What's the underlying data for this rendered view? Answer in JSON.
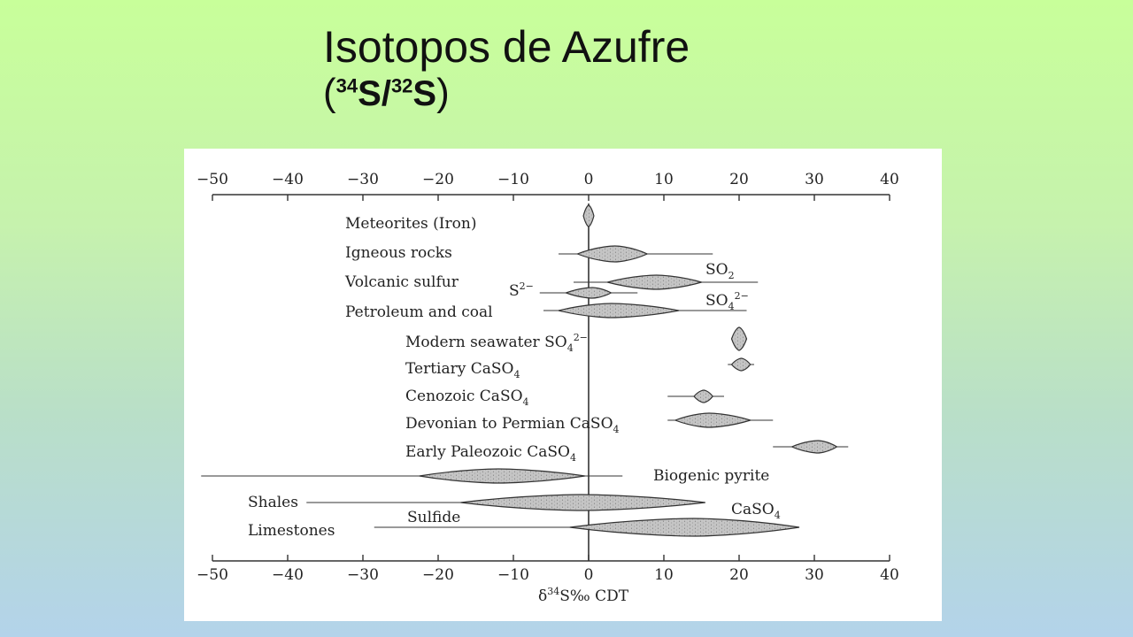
{
  "title": {
    "line1": "Isotopos de Azufre",
    "open_paren": "(",
    "iso1": "34",
    "s1": "S/",
    "iso2": "32",
    "s2": "S",
    "close_paren": ")"
  },
  "chart_data": {
    "type": "range-distribution",
    "xlim": [
      -50,
      40
    ],
    "ticks": [
      -50,
      -40,
      -30,
      -20,
      -10,
      0,
      10,
      20,
      30,
      40
    ],
    "tick_labels": [
      "−50",
      "−40",
      "−30",
      "−20",
      "−10",
      "0",
      "10",
      "20",
      "30",
      "40"
    ],
    "xlabel": "δ³⁴S‰ CDT",
    "reference_line": 0,
    "series": [
      {
        "name": "Meteorites (Iron)",
        "label": "Meteorites (Iron)",
        "line": [
          0,
          0
        ],
        "peak_start": -0.7,
        "peak_end": 0.7,
        "peak_mode": 0
      },
      {
        "name": "Igneous rocks",
        "label": "Igneous rocks",
        "line": [
          -4,
          16.5
        ],
        "peak_start": -1.5,
        "peak_end": 7.8,
        "peak_mode": 3.5
      },
      {
        "name": "Volcanic sulfur SO2",
        "label": "SO₂",
        "line": [
          -2,
          22.5
        ],
        "peak_start": 2.5,
        "peak_end": 15,
        "peak_mode": 9
      },
      {
        "name": "Volcanic sulfur S2-",
        "label": "S²⁻",
        "line": [
          -6.5,
          6.5
        ],
        "peak_start": -3,
        "peak_end": 3,
        "peak_mode": 0.5
      },
      {
        "name": "Petroleum and coal",
        "label": "Petroleum and coal",
        "line": [
          -6,
          21
        ],
        "peak_start": -4,
        "peak_end": 12,
        "peak_mode": 3
      },
      {
        "name": "Modern seawater SO4",
        "label": "Modern seawater SO₄²⁻",
        "line": [
          20,
          20
        ],
        "peak_start": 19,
        "peak_end": 21,
        "peak_mode": 20
      },
      {
        "name": "Tertiary CaSO4",
        "label": "Tertiary CaSO₄",
        "line": [
          18.5,
          22
        ],
        "peak_start": 19,
        "peak_end": 21.5,
        "peak_mode": 20.3
      },
      {
        "name": "Cenozoic CaSO4",
        "label": "Cenozoic CaSO₄",
        "line": [
          10.5,
          18
        ],
        "peak_start": 14,
        "peak_end": 16.5,
        "peak_mode": 15.3
      },
      {
        "name": "Devonian to Permian CaSO4",
        "label": "Devonian to Permian CaSO₄",
        "line": [
          10.5,
          24.5
        ],
        "peak_start": 11.5,
        "peak_end": 21.5,
        "peak_mode": 16
      },
      {
        "name": "Early Paleozoic CaSO4",
        "label": "Early Paleozoic CaSO₄",
        "line": [
          24.5,
          34.5
        ],
        "peak_start": 27,
        "peak_end": 33,
        "peak_mode": 30.5
      },
      {
        "name": "Biogenic pyrite",
        "label": "Biogenic pyrite",
        "line": [
          -51.5,
          4.5
        ],
        "peak_start": -22.5,
        "peak_end": -0.5,
        "peak_mode": -12
      },
      {
        "name": "Shales",
        "label": "Shales",
        "line": [
          -37.5,
          15.5
        ],
        "peak_start": -17,
        "peak_end": 15.5,
        "peak_mode": -1
      },
      {
        "name": "Limestones sulfide",
        "label": "Sulfide",
        "line": [
          -28.5,
          28
        ],
        "peak_start": -2.5,
        "peak_end": 28,
        "peak_mode": 14
      }
    ],
    "annotations": [
      "Volcanic sulfur",
      "SO₄²⁻",
      "CaSO₄",
      "Limestones"
    ]
  }
}
